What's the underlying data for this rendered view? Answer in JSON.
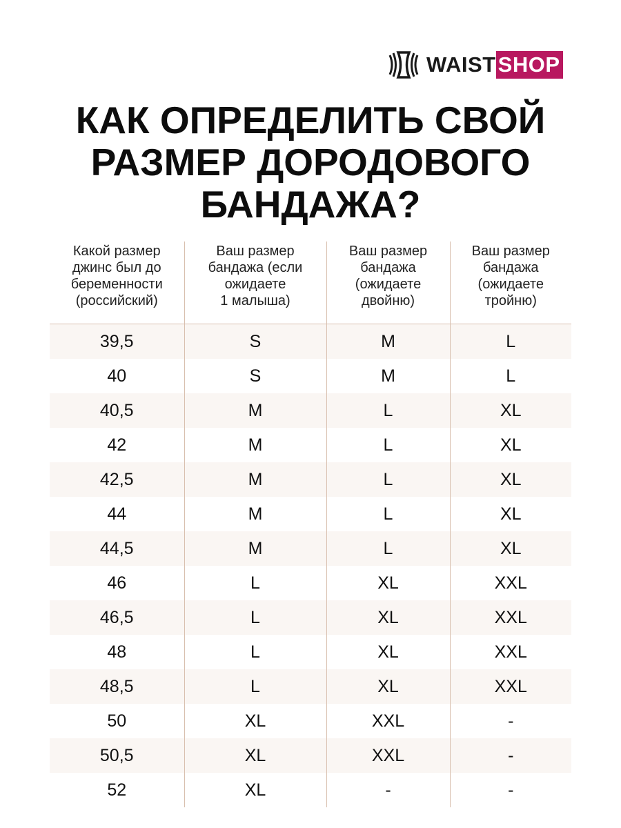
{
  "logo": {
    "text_dark": "WAIST",
    "text_accent": "SHOP",
    "accent_color": "#b8185f"
  },
  "title": [
    "КАК ОПРЕДЕЛИТЬ СВОЙ",
    "РАЗМЕР ДОРОДОВОГО",
    "БАНДАЖА?"
  ],
  "table": {
    "headers": [
      [
        "Какой размер",
        "джинс был до",
        "беременности",
        "(российский)"
      ],
      [
        "Ваш размер",
        "бандажа (если",
        "ожидаете",
        "1 малыша)"
      ],
      [
        "Ваш размер",
        "бандажа",
        "(ожидаете",
        "двойню)"
      ],
      [
        "Ваш размер",
        "бандажа",
        "(ожидаете",
        "тройню)"
      ]
    ],
    "rows": [
      [
        "39,5",
        "S",
        "M",
        "L"
      ],
      [
        "40",
        "S",
        "M",
        "L"
      ],
      [
        "40,5",
        "M",
        "L",
        "XL"
      ],
      [
        "42",
        "M",
        "L",
        "XL"
      ],
      [
        "42,5",
        "M",
        "L",
        "XL"
      ],
      [
        "44",
        "M",
        "L",
        "XL"
      ],
      [
        "44,5",
        "M",
        "L",
        "XL"
      ],
      [
        "46",
        "L",
        "XL",
        "XXL"
      ],
      [
        "46,5",
        "L",
        "XL",
        "XXL"
      ],
      [
        "48",
        "L",
        "XL",
        "XXL"
      ],
      [
        "48,5",
        "L",
        "XL",
        "XXL"
      ],
      [
        "50",
        "XL",
        "XXL",
        "-"
      ],
      [
        "50,5",
        "XL",
        "XXL",
        "-"
      ],
      [
        "52",
        "XL",
        "-",
        "-"
      ]
    ]
  }
}
